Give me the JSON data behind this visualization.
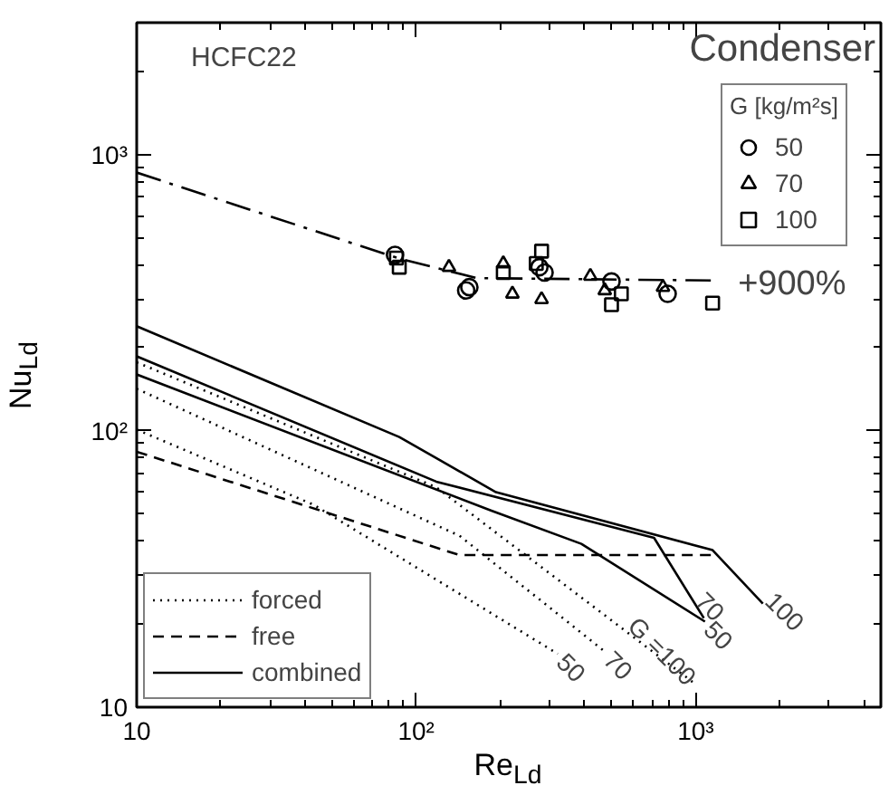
{
  "chart_data": {
    "type": "line",
    "title": "Condenser",
    "subtitle": "HCFC22",
    "xlabel": "Re$_{Ld}$",
    "ylabel": "Nu$_{Ld}$",
    "log": "xy",
    "xlim": [
      10,
      4600
    ],
    "ylim": [
      10,
      3000
    ],
    "xticks": [
      10,
      {
        "value": 100,
        "label": "10²"
      },
      {
        "value": 1000,
        "label": "10³"
      }
    ],
    "yticks": [
      10,
      {
        "value": 100,
        "label": "10²"
      },
      {
        "value": 1000,
        "label": "10³"
      }
    ],
    "grid": false,
    "legend": "bottom left",
    "legend_title": "G [kg/m²s]",
    "series": [
      {
        "line_style": "dashdot",
        "color": "#000000",
        "x": [
          10,
          87,
          165,
          1150
        ],
        "values": [
          860,
          420,
          357,
          350
        ]
      },
      {
        "name": "forced",
        "line_style": "dotted",
        "color": "#000000",
        "x": [
          10,
          118,
          1000
        ],
        "values": [
          177,
          62.5,
          12.1
        ]
      },
      {
        "line_style": "dotted",
        "color": "#000000",
        "x": [
          10,
          143,
          473
        ],
        "values": [
          142,
          41.7,
          15.9
        ]
      },
      {
        "line_style": "dotted",
        "color": "#000000",
        "x": [
          10,
          43,
          321
        ],
        "values": [
          101,
          54,
          15.6
        ]
      },
      {
        "name": "free",
        "line_style": "dashed",
        "color": "#000000",
        "x": [
          10,
          143,
          1150
        ],
        "values": [
          84,
          35.5,
          35.5
        ]
      },
      {
        "name": "combined",
        "line_style": "solid",
        "color": "#000000",
        "x": [
          10,
          87,
          193,
          1150,
          1740
        ],
        "values": [
          239,
          95,
          60,
          37,
          23.7
        ]
      },
      {
        "line_style": "solid",
        "color": "#000000",
        "x": [
          10,
          118,
          710,
          1070
        ],
        "values": [
          186,
          65.5,
          41,
          21
        ]
      },
      {
        "line_style": "solid",
        "color": "#000000",
        "x": [
          10,
          185,
          390,
          1080
        ],
        "values": [
          160,
          51.5,
          39,
          20.4
        ]
      },
      {
        "name": "50",
        "type": "scatter",
        "marker": "circle",
        "color": "#000000",
        "x": [
          84,
          151,
          155,
          276,
          288,
          500,
          794
        ],
        "values": [
          433,
          322,
          331,
          391,
          374,
          347,
          313
        ]
      },
      {
        "name": "70",
        "type": "scatter",
        "marker": "triangle",
        "color": "#000000",
        "x": [
          131,
          205,
          221,
          281,
          420,
          473,
          764
        ],
        "values": [
          391,
          403,
          313,
          299,
          363,
          322,
          331
        ]
      },
      {
        "name": "100",
        "type": "scatter",
        "marker": "square",
        "color": "#000000",
        "x": [
          85,
          87,
          205,
          269,
          281,
          500,
          542,
          1150
        ],
        "values": [
          422,
          391,
          374,
          403,
          447,
          286,
          313,
          290
        ]
      }
    ],
    "annotations": [
      {
        "text": "+900%",
        "x": 1150,
        "y": 350
      },
      {
        "text": "50",
        "x": 321,
        "y": 15.6
      },
      {
        "text": "70",
        "x": 473,
        "y": 15.9
      },
      {
        "text": "G =100",
        "x": 1000,
        "y": 12.1
      },
      {
        "text": "50",
        "x": 1080,
        "y": 20.4
      },
      {
        "text": "70",
        "x": 1070,
        "y": 21
      },
      {
        "text": "100",
        "x": 1740,
        "y": 23.7
      }
    ]
  }
}
